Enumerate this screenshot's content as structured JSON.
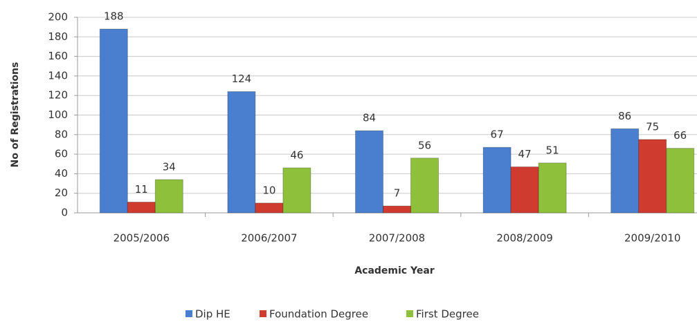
{
  "chart_data": {
    "type": "bar",
    "x_label": "Academic Year",
    "y_label": "No of Registrations",
    "categories": [
      "2005/2006",
      "2006/2007",
      "2007/2008",
      "2008/2009",
      "2009/2010"
    ],
    "series": [
      {
        "name": "Dip HE",
        "color": "#4a7fd0",
        "values": [
          188,
          124,
          84,
          67,
          86
        ]
      },
      {
        "name": "Foundation Degree",
        "color": "#d03b2f",
        "values": [
          11,
          10,
          7,
          47,
          75
        ]
      },
      {
        "name": "First Degree",
        "color": "#8fc03c",
        "values": [
          34,
          46,
          56,
          51,
          66
        ]
      }
    ],
    "ylim": [
      0,
      200
    ],
    "yticks": [
      0,
      20,
      40,
      60,
      80,
      100,
      120,
      140,
      160,
      180,
      200
    ],
    "grid": true,
    "legend": "bottom"
  }
}
